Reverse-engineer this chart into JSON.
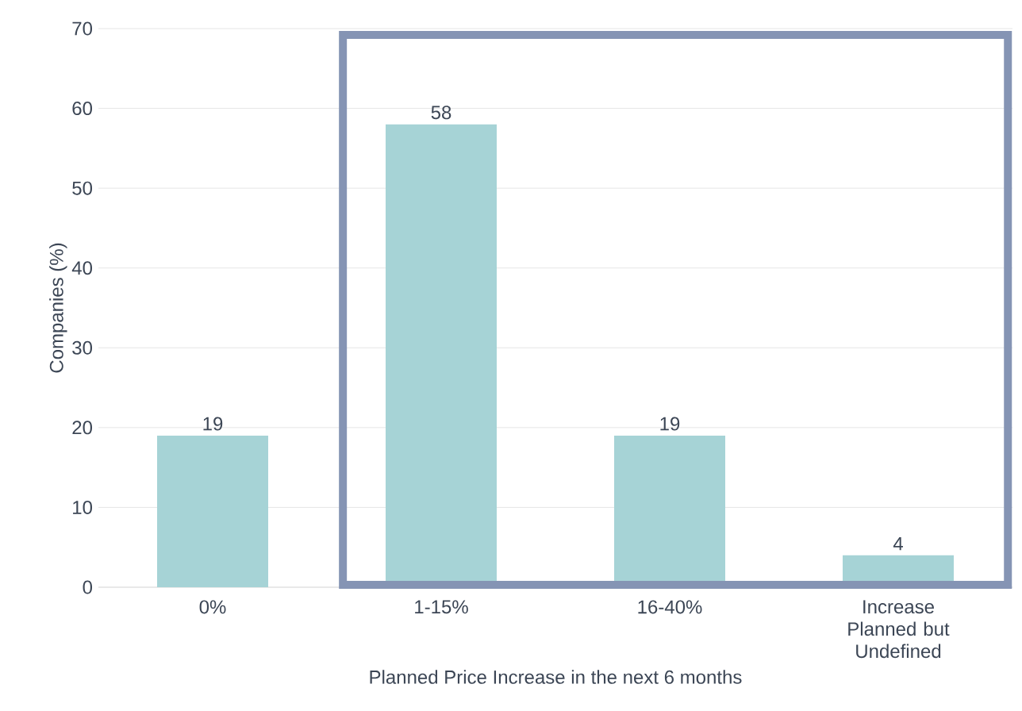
{
  "chart_data": {
    "type": "bar",
    "xlabel": "Planned Price Increase in the next 6 months",
    "ylabel": "Companies (%)",
    "categories": [
      "0%",
      "1-15%",
      "16-40%",
      "Increase Planned but Undefined"
    ],
    "values": [
      19,
      58,
      19,
      4
    ],
    "color": "#a6d3d6",
    "ylim": [
      0,
      70
    ],
    "yticks": [
      0,
      10,
      20,
      30,
      40,
      50,
      60,
      70
    ],
    "grid": "y",
    "data_labels": true
  }
}
